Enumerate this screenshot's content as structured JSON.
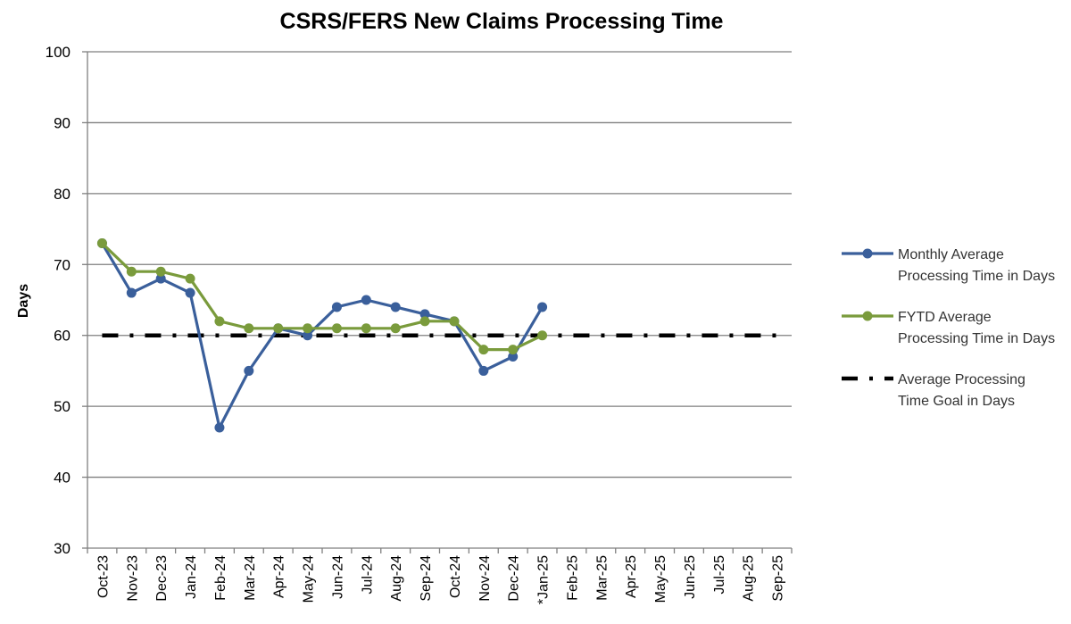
{
  "chart_data": {
    "type": "line",
    "title": "CSRS/FERS New Claims Processing Time",
    "xlabel": "",
    "ylabel": "Days",
    "ylim": [
      30,
      100
    ],
    "yticks": [
      30,
      40,
      50,
      60,
      70,
      80,
      90,
      100
    ],
    "grid": true,
    "legend_position": "right",
    "categories": [
      "Oct-23",
      "Nov-23",
      "Dec-23",
      "Jan-24",
      "Feb-24",
      "Mar-24",
      "Apr-24",
      "May-24",
      "Jun-24",
      "Jul-24",
      "Aug-24",
      "Sep-24",
      "Oct-24",
      "Nov-24",
      "Dec-24",
      "*Jan-25",
      "Feb-25",
      "Mar-25",
      "Apr-25",
      "May-25",
      "Jun-25",
      "Jul-25",
      "Aug-25",
      "Sep-25"
    ],
    "series": [
      {
        "name": "Monthly Average Processing Time in Days",
        "legend_lines": [
          "Monthly Average",
          "Processing Time in Days"
        ],
        "color": "#3a5f9b",
        "style": "solid-markers",
        "values": [
          73,
          66,
          68,
          66,
          47,
          55,
          61,
          60,
          64,
          65,
          64,
          63,
          62,
          55,
          57,
          64,
          null,
          null,
          null,
          null,
          null,
          null,
          null,
          null
        ]
      },
      {
        "name": "FYTD Average Processing Time in Days",
        "legend_lines": [
          "FYTD Average",
          "Processing Time in Days"
        ],
        "color": "#7a9b3c",
        "style": "solid-markers",
        "values": [
          73,
          69,
          69,
          68,
          62,
          61,
          61,
          61,
          61,
          61,
          61,
          62,
          62,
          58,
          58,
          60,
          null,
          null,
          null,
          null,
          null,
          null,
          null,
          null
        ]
      },
      {
        "name": "Average Processing Time Goal in Days",
        "legend_lines": [
          "Average Processing",
          "Time Goal in Days"
        ],
        "color": "#000000",
        "style": "dash-dot",
        "values": [
          60,
          60,
          60,
          60,
          60,
          60,
          60,
          60,
          60,
          60,
          60,
          60,
          60,
          60,
          60,
          60,
          60,
          60,
          60,
          60,
          60,
          60,
          60,
          60
        ]
      }
    ]
  }
}
